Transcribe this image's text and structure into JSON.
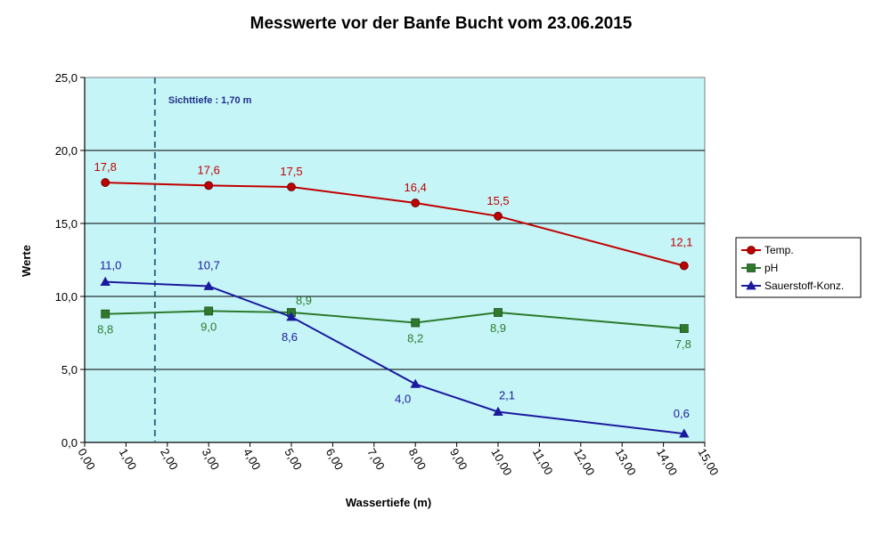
{
  "chart_data": {
    "type": "line",
    "title": "Messwerte vor der Banfe Bucht vom 23.06.2015",
    "xlabel": "Wassertiefe  (m)",
    "ylabel": "Werte",
    "xlim": [
      0,
      15
    ],
    "ylim": [
      0,
      25
    ],
    "x_ticks": [
      "0,00",
      "1,00",
      "2,00",
      "3,00",
      "4,00",
      "5,00",
      "6,00",
      "7,00",
      "8,00",
      "9,00",
      "10,00",
      "11,00",
      "12,00",
      "13,00",
      "14,00",
      "15,00"
    ],
    "y_ticks": [
      "0,0",
      "5,0",
      "10,0",
      "15,0",
      "20,0",
      "25,0"
    ],
    "grid": "horizontal",
    "background": "#c6f5f7",
    "legend_position": "right",
    "annotation": {
      "text": "Sichttiefe : 1,70 m",
      "x": 1.7,
      "color": "#1f2f8a"
    },
    "series": [
      {
        "name": "Temp.",
        "color": "#c00000",
        "marker": "circle",
        "x": [
          0.5,
          3.0,
          5.0,
          8.0,
          10.0,
          14.5
        ],
        "values": [
          17.8,
          17.6,
          17.5,
          16.4,
          15.5,
          12.1
        ],
        "labels": [
          "17,8",
          "17,6",
          "17,5",
          "16,4",
          "15,5",
          "12,1"
        ]
      },
      {
        "name": "pH",
        "color": "#2d7a2d",
        "marker": "square",
        "x": [
          0.5,
          3.0,
          5.0,
          8.0,
          10.0,
          14.5
        ],
        "values": [
          8.8,
          9.0,
          8.9,
          8.2,
          8.9,
          7.8
        ],
        "labels": [
          "8,8",
          "9,0",
          "8,9",
          "8,2",
          "8,9",
          "7,8"
        ]
      },
      {
        "name": "Sauerstoff-Konz.",
        "color": "#1a1a9e",
        "marker": "triangle",
        "x": [
          0.5,
          3.0,
          5.0,
          8.0,
          10.0,
          14.5
        ],
        "values": [
          11.0,
          10.7,
          8.6,
          4.0,
          2.1,
          0.6
        ],
        "labels": [
          "11,0",
          "10,7",
          "8,6",
          "4,0",
          "2,1",
          "0,6"
        ]
      }
    ]
  }
}
